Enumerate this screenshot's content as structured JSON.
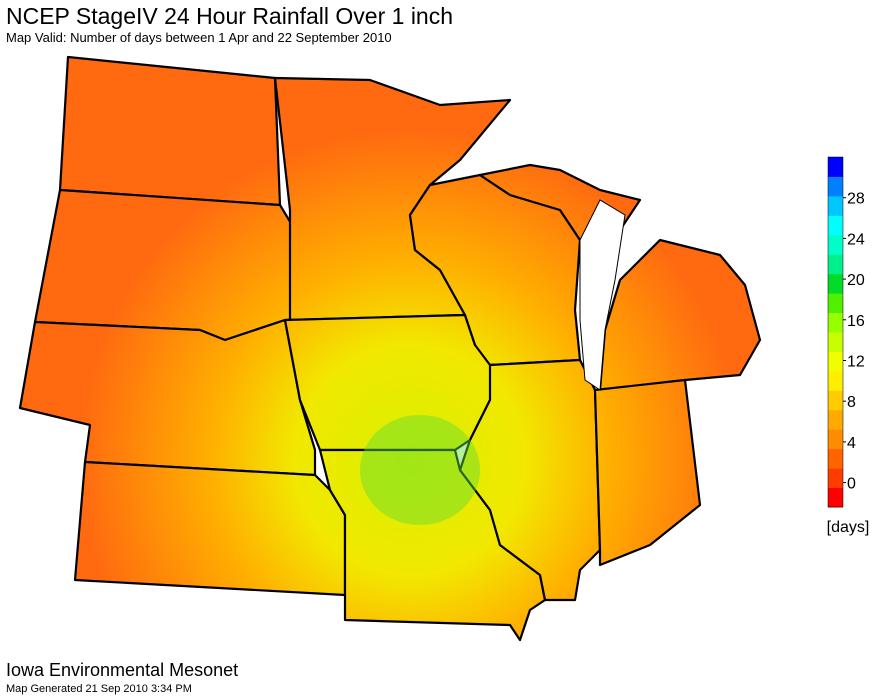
{
  "header": {
    "title": "NCEP StageIV 24 Hour Rainfall Over 1 inch",
    "subtitle": "Map Valid: Number of days between 1 Apr and 22 September 2010"
  },
  "colorbar": {
    "lim": [
      -2.4,
      32
    ],
    "ticks": [
      0,
      4,
      8,
      12,
      16,
      20,
      24,
      28
    ],
    "unit": "[days]",
    "colors": [
      "#ff0000",
      "#ff3c00",
      "#ff6400",
      "#ff8c00",
      "#ffaa00",
      "#ffcc00",
      "#ffee00",
      "#f0ff00",
      "#c8ff00",
      "#96ff00",
      "#50f000",
      "#00dc28",
      "#00f08c",
      "#00ffc8",
      "#00ffff",
      "#00c8ff",
      "#0080ff",
      "#0000ff"
    ]
  },
  "footer": {
    "org": "Iowa Environmental Mesonet",
    "generated": "Map Generated 21 Sep 2010 3:34 PM"
  }
}
